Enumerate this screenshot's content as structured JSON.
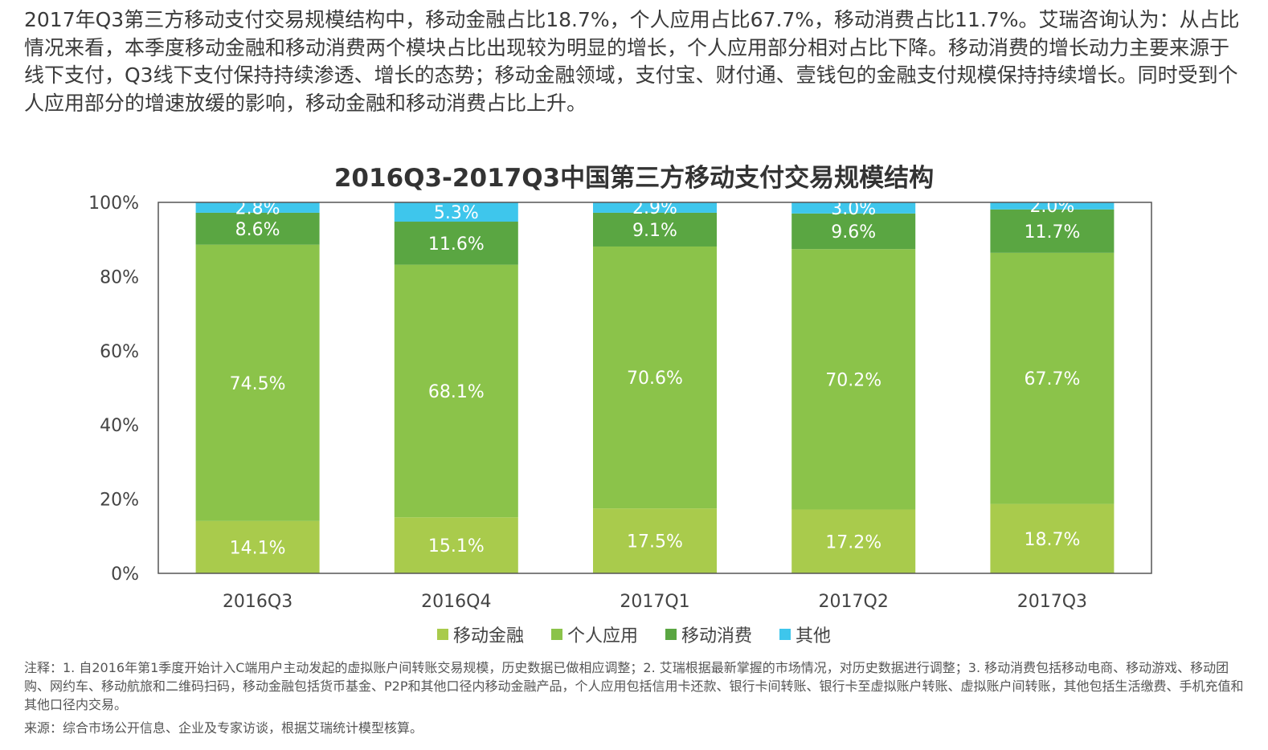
{
  "intro_text": "2017年Q3第三方移动支付交易规模结构中，移动金融占比18.7%，个人应用占比67.7%，移动消费占比11.7%。艾瑞咨询认为：从占比情况来看，本季度移动金融和移动消费两个模块占比出现较为明显的增长，个人应用部分相对占比下降。移动消费的增长动力主要来源于线下支付，Q3线下支付保持持续渗透、增长的态势；移动金融领域，支付宝、财付通、壹钱包的金融支付规模保持持续增长。同时受到个人应用部分的增速放缓的影响，移动金融和移动消费占比上升。",
  "notes_text": "注释：1. 自2016年第1季度开始计入C端用户主动发起的虚拟账户间转账交易规模，历史数据已做相应调整；2. 艾瑞根据最新掌握的市场情况，对历史数据进行调整；3. 移动消费包括移动电商、移动游戏、移动团购、网约车、移动航旅和二维码扫码，移动金融包括货币基金、P2P和其他口径内移动金融产品，个人应用包括信用卡还款、银行卡间转账、银行卡至虚拟账户转账、虚拟账户间转账，其他包括生活缴费、手机充值和其他口径内交易。",
  "source_text": "来源：综合市场公开信息、企业及专家访谈，根据艾瑞统计模型核算。",
  "chart_data": {
    "type": "bar",
    "stacked": true,
    "title": "2016Q3-2017Q3中国第三方移动支付交易规模结构",
    "xlabel": "",
    "ylabel": "",
    "categories": [
      "2016Q3",
      "2016Q4",
      "2017Q1",
      "2017Q2",
      "2017Q3"
    ],
    "ylim": [
      0,
      100
    ],
    "yticks": [
      "0%",
      "20%",
      "40%",
      "60%",
      "80%",
      "100%"
    ],
    "series": [
      {
        "name": "移动金融",
        "color": "#a9cb4c",
        "values": [
          14.1,
          15.1,
          17.5,
          17.2,
          18.7
        ],
        "labels": [
          "14.1%",
          "15.1%",
          "17.5%",
          "17.2%",
          "18.7%"
        ]
      },
      {
        "name": "个人应用",
        "color": "#8bc34a",
        "values": [
          74.5,
          68.1,
          70.6,
          70.2,
          67.7
        ],
        "labels": [
          "74.5%",
          "68.1%",
          "70.6%",
          "70.2%",
          "67.7%"
        ]
      },
      {
        "name": "移动消费",
        "color": "#5aa642",
        "values": [
          8.6,
          11.6,
          9.1,
          9.6,
          11.7
        ],
        "labels": [
          "8.6%",
          "11.6%",
          "9.1%",
          "9.6%",
          "11.7%"
        ]
      },
      {
        "name": "其他",
        "color": "#3ec6ec",
        "values": [
          2.8,
          5.3,
          2.9,
          3.0,
          2.0
        ],
        "labels": [
          "2.8%",
          "5.3%",
          "2.9%",
          "3.0%",
          "2.0%"
        ]
      }
    ],
    "grid": false,
    "legend_position": "bottom"
  }
}
